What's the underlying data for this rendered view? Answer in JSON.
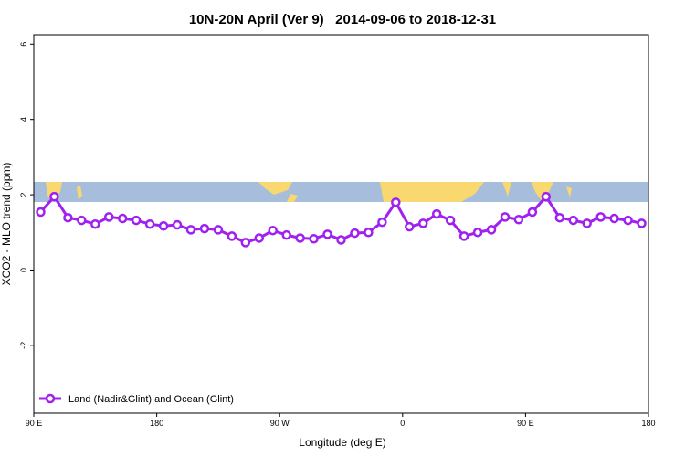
{
  "chart_data": {
    "type": "line",
    "title": "10N-20N April (Ver 9)   2014-09-06 to 2018-12-31",
    "x_label": "Longitude (deg E)",
    "y_label": "XCO2 - MLO trend (ppm)",
    "x": [
      95,
      105,
      115,
      125,
      135,
      145,
      155,
      165,
      175,
      185,
      195,
      205,
      215,
      225,
      235,
      245,
      255,
      265,
      275,
      285,
      295,
      305,
      315,
      325,
      335,
      345,
      355,
      365,
      375,
      385,
      395,
      405,
      415,
      425,
      435,
      445,
      455,
      465,
      475,
      485,
      495,
      505,
      515,
      525,
      535
    ],
    "series": [
      {
        "name": "Land (Nadir&Glint) and Ocean (Glint)",
        "color": "#a020f0",
        "values": [
          1.54,
          1.95,
          1.39,
          1.32,
          1.22,
          1.41,
          1.37,
          1.32,
          1.22,
          1.17,
          1.2,
          1.07,
          1.1,
          1.07,
          0.9,
          0.73,
          0.85,
          1.05,
          0.93,
          0.85,
          0.83,
          0.95,
          0.8,
          0.98,
          1.0,
          1.27,
          1.8,
          1.15,
          1.24,
          1.49,
          1.32,
          0.9,
          1.0,
          1.07,
          1.41,
          1.34,
          1.54,
          1.95,
          1.39,
          1.32,
          1.24,
          1.41,
          1.37,
          1.32,
          1.24
        ]
      }
    ],
    "xlim": [
      90,
      540
    ],
    "xticks": [
      {
        "value": 90,
        "label": "90 E"
      },
      180,
      {
        "value": 270,
        "label": "90 W"
      },
      {
        "value": 360,
        "label": "0"
      },
      {
        "value": 450,
        "label": "90 E"
      },
      {
        "value": 540,
        "label": "180"
      }
    ],
    "ylim": [
      -3.8,
      6.25
    ],
    "yticks": [
      -2,
      0,
      2,
      4,
      6
    ],
    "legend": "bottom-left"
  }
}
